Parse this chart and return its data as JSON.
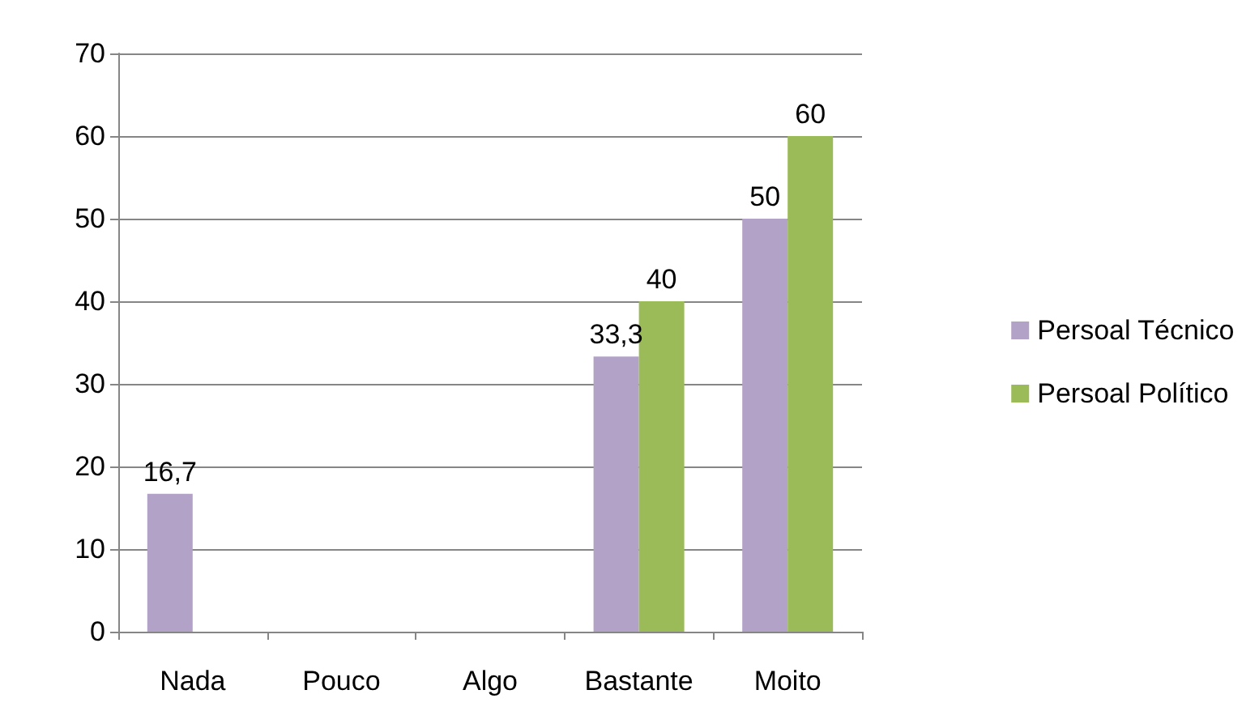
{
  "chart_data": {
    "type": "bar",
    "categories": [
      "Nada",
      "Pouco",
      "Algo",
      "Bastante",
      "Moito"
    ],
    "series": [
      {
        "name": "Persoal Técnico",
        "color": "#b3a2c7",
        "values": [
          16.7,
          null,
          null,
          33.3,
          50
        ],
        "value_labels": [
          "16,7",
          null,
          null,
          "33,3",
          "50"
        ]
      },
      {
        "name": "Persoal Político",
        "color": "#9bbb59",
        "values": [
          null,
          null,
          null,
          40,
          60
        ],
        "value_labels": [
          null,
          null,
          null,
          "40",
          "60"
        ]
      }
    ],
    "ylim": [
      0,
      70
    ],
    "yticks": [
      0,
      10,
      20,
      30,
      40,
      50,
      60,
      70
    ],
    "grid": "y",
    "legend": "right"
  }
}
